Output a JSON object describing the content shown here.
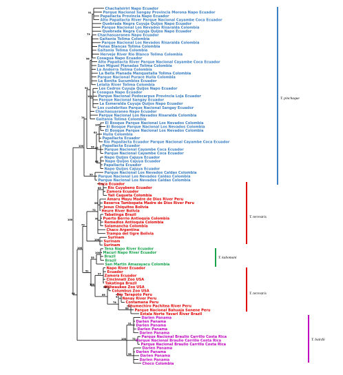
{
  "colors": {
    "pinchaque": "#3b7fc4",
    "terrestris": "#e10000",
    "kabomani": "#15a34a",
    "bairdii": "#c000c0",
    "branch": "#000000"
  },
  "clades": [
    {
      "key": "pinchaque",
      "label": "T. pinchaque"
    },
    {
      "key": "terrestris_a",
      "label": "T. terrestris"
    },
    {
      "key": "kabomani",
      "label": "T. kabomani"
    },
    {
      "key": "terrestris_b",
      "label": "T. terrestris"
    },
    {
      "key": "bairdii",
      "label": "T. bairdii"
    }
  ],
  "leaves": [
    {
      "text": "Chachalsiriri Napo Ecuador",
      "g": "pinchaque"
    },
    {
      "text": "Parque Nacional Sangay Provincia Morona Napo Ecuador",
      "g": "pinchaque"
    },
    {
      "text": "Papallacta Provincia Napo Ecuador",
      "g": "pinchaque"
    },
    {
      "text": "Alto Papallacta River Parque Nacional Cayambe Coca Ecuador",
      "g": "pinchaque"
    },
    {
      "text": "Quebrada Negra Cuyuja Quijos Napo Ecuador",
      "g": "pinchaque"
    },
    {
      "text": "Parque Nacional Los Nevados Risaralda Colombia",
      "g": "pinchaque"
    },
    {
      "text": "Quebrada Negra Cuyuja Quijos Napo Ecuador",
      "g": "pinchaque"
    },
    {
      "text": "Chachasuaraneo Napo Ecuador",
      "g": "pinchaque"
    },
    {
      "text": "Gaitania Tolima Colombia",
      "g": "pinchaque"
    },
    {
      "text": "Parque Nacional Los Nevados Risaralda Colombia",
      "g": "pinchaque"
    },
    {
      "text": "Peñas Blancas Tolima Colombia",
      "g": "pinchaque"
    },
    {
      "text": "Gaitania Tolima Colombia",
      "g": "pinchaque"
    },
    {
      "text": "Herveje River Rio Blanco Tolima Colombia",
      "g": "pinchaque"
    },
    {
      "text": "Cosagua Napo Ecuador",
      "g": "pinchaque"
    },
    {
      "text": "Alto Papallacta River Parque Nacional Cayambe Coca Ecuador",
      "g": "pinchaque"
    },
    {
      "text": "San Miguel Planadas Tolima Colombia",
      "g": "pinchaque"
    },
    {
      "text": "La Andorra Tolima Colombia",
      "g": "pinchaque"
    },
    {
      "text": "La Bella Planada Manquetalia Tolima Colombia",
      "g": "pinchaque"
    },
    {
      "text": "Parque Nacional Purace Huila Colombia",
      "g": "pinchaque"
    },
    {
      "text": "La Bonita Sucumbios Ecuador",
      "g": "pinchaque"
    },
    {
      "text": "Lelalia River Tolima Colombia",
      "g": "pinchaque"
    },
    {
      "text": "Los Cedros Cuyuja Quijos Napo Ecuador",
      "g": "pinchaque"
    },
    {
      "text": "Cosagua Napo Ecuador",
      "g": "pinchaque"
    },
    {
      "text": "Parque Nacional Podocarpus Provincia Loja Ecuador",
      "g": "pinchaque"
    },
    {
      "text": "Parque Nacional Sangay Ecuador",
      "g": "pinchaque"
    },
    {
      "text": "La Esmeralda Cuyuja Quijos Napo Ecuador",
      "g": "pinchaque"
    },
    {
      "text": "Los cuslebritas Parque Nacional Sangay Ecuador",
      "g": "pinchaque"
    },
    {
      "text": "Chachasuaraneo Napo Ecuador",
      "g": "pinchaque"
    },
    {
      "text": "Parque Nacional Los Nevados Risaralda Colombia",
      "g": "pinchaque"
    },
    {
      "text": "Gaitania Tolima Colombia",
      "g": "pinchaque"
    },
    {
      "text": "El Bosque Parque Nacional Los Nevados Colombia",
      "g": "pinchaque"
    },
    {
      "text": "El Bosque Parque Nacional Los Nevados Colombia",
      "g": "pinchaque"
    },
    {
      "text": "El Bosque Parque Nacional Los Nevados Colombia",
      "g": "pinchaque"
    },
    {
      "text": "Huila Colombia",
      "g": "pinchaque"
    },
    {
      "text": "Papallacta Ecuador",
      "g": "pinchaque"
    },
    {
      "text": "Rio Papallacta Ecuador Parque Nacional Cayambe Coca Ecuador",
      "g": "pinchaque"
    },
    {
      "text": "Papallacta Ecuador",
      "g": "pinchaque"
    },
    {
      "text": "Parque Nacional Cayambe Coca Ecuador",
      "g": "pinchaque"
    },
    {
      "text": "Parque Nacional Cayambe Coca Ecuador",
      "g": "pinchaque"
    },
    {
      "text": "Napo Quijos Cajuya Ecuador",
      "g": "pinchaque"
    },
    {
      "text": "Napo Quijos Cajuya Ecuador",
      "g": "pinchaque"
    },
    {
      "text": "Papallacta Ecuador",
      "g": "pinchaque"
    },
    {
      "text": "Napo Quijos Cajuya Ecuador",
      "g": "pinchaque"
    },
    {
      "text": "Parque Nacional Los Nevados Caldas Colombia",
      "g": "pinchaque"
    },
    {
      "text": "Parque Nacional Los Nevados Caldas Colombia",
      "g": "pinchaque"
    },
    {
      "text": "Parque Nacional Los Nevados Caldas Colombia",
      "g": "pinchaque"
    },
    {
      "text": "Coca Ecuador",
      "g": "terrestris"
    },
    {
      "text": "Rio Cuyabeno Ecuador",
      "g": "terrestris"
    },
    {
      "text": "Zamora Ecuador",
      "g": "terrestris"
    },
    {
      "text": "Yali Caqueta Colombia",
      "g": "terrestris"
    },
    {
      "text": "Amaru Mayu Madre de Dios River Peru",
      "g": "terrestris"
    },
    {
      "text": "Reserva Tambopata Madre de Dios River Peru",
      "g": "terrestris"
    },
    {
      "text": "Jesus Chiquitos Bolivia",
      "g": "terrestris"
    },
    {
      "text": "Heure River Bolivia",
      "g": "terrestris"
    },
    {
      "text": "Tabatinga Brazil",
      "g": "terrestris"
    },
    {
      "text": "Puerto Berrio Antioquia Colombia",
      "g": "terrestris"
    },
    {
      "text": "Remedios Antioquia Colombia",
      "g": "terrestris"
    },
    {
      "text": "Salamancha Colombia",
      "g": "terrestris"
    },
    {
      "text": "Chaco Argentina",
      "g": "terrestris"
    },
    {
      "text": "Trampa del tigre Bolivia",
      "g": "terrestris"
    },
    {
      "text": "Surinam",
      "g": "terrestris"
    },
    {
      "text": "Surinam",
      "g": "terrestris"
    },
    {
      "text": "Surinam",
      "g": "terrestris"
    },
    {
      "text": "Tena Napo River Ecuador",
      "g": "kabomani"
    },
    {
      "text": "Macuri Napo River Ecuador",
      "g": "kabomani"
    },
    {
      "text": "Brazil",
      "g": "kabomani"
    },
    {
      "text": "Brazil",
      "g": "kabomani"
    },
    {
      "text": "San Martin Amazayacu Colombia",
      "g": "kabomani"
    },
    {
      "text": "Napo River Ecuador",
      "g": "terrestris"
    },
    {
      "text": "Ecuador",
      "g": "terrestris"
    },
    {
      "text": "Zamora Ecuador",
      "g": "terrestris"
    },
    {
      "text": "Cincinnati Zoo USA",
      "g": "terrestris"
    },
    {
      "text": "Takatinga Brazil",
      "g": "terrestris"
    },
    {
      "text": "Millwaukee Zoo USA",
      "g": "terrestris"
    },
    {
      "text": "Columbus Zoo USA",
      "g": "terrestris"
    },
    {
      "text": "Rio Tarapoto Peru",
      "g": "terrestris"
    },
    {
      "text": "Nanay River Peru",
      "g": "terrestris"
    },
    {
      "text": "Contamana Peru",
      "g": "terrestris"
    },
    {
      "text": "Chumechiro Pachitea River Peru",
      "g": "terrestris"
    },
    {
      "text": "Parque Nacional Bahuaja Sonene Peru",
      "g": "terrestris"
    },
    {
      "text": "Estala Norte Yavari River Brazil",
      "g": "terrestris"
    },
    {
      "text": "Darien Panama",
      "g": "bairdii"
    },
    {
      "text": "Darien Panama",
      "g": "bairdii"
    },
    {
      "text": "Darien Panama",
      "g": "bairdii"
    },
    {
      "text": "Darien Panama",
      "g": "bairdii"
    },
    {
      "text": "Darien Panama",
      "g": "bairdii"
    },
    {
      "text": "Parque Nacional Braulio Carrillo Costa Rica",
      "g": "bairdii"
    },
    {
      "text": "Parque Nacional Braulio Carrillo Costa Rica",
      "g": "bairdii"
    },
    {
      "text": "Parque Nacional Braulio Carrillo Costa Rica",
      "g": "bairdii"
    },
    {
      "text": "Darien Panama",
      "g": "bairdii"
    },
    {
      "text": "Darien Panama",
      "g": "bairdii"
    },
    {
      "text": "Darien Panama",
      "g": "bairdii"
    },
    {
      "text": "Darien Panama",
      "g": "bairdii"
    },
    {
      "text": "Choco Colombia",
      "g": "bairdii"
    }
  ],
  "support": [
    "91",
    "73",
    "56",
    "100",
    "94",
    "100",
    "63",
    "55",
    "88",
    "96",
    "78",
    "99",
    "100",
    "65",
    "55",
    "90",
    "73",
    "100",
    "70",
    "100",
    "55",
    "97",
    "76",
    "93",
    "88",
    "78",
    "66",
    "100",
    "51",
    "100"
  ]
}
